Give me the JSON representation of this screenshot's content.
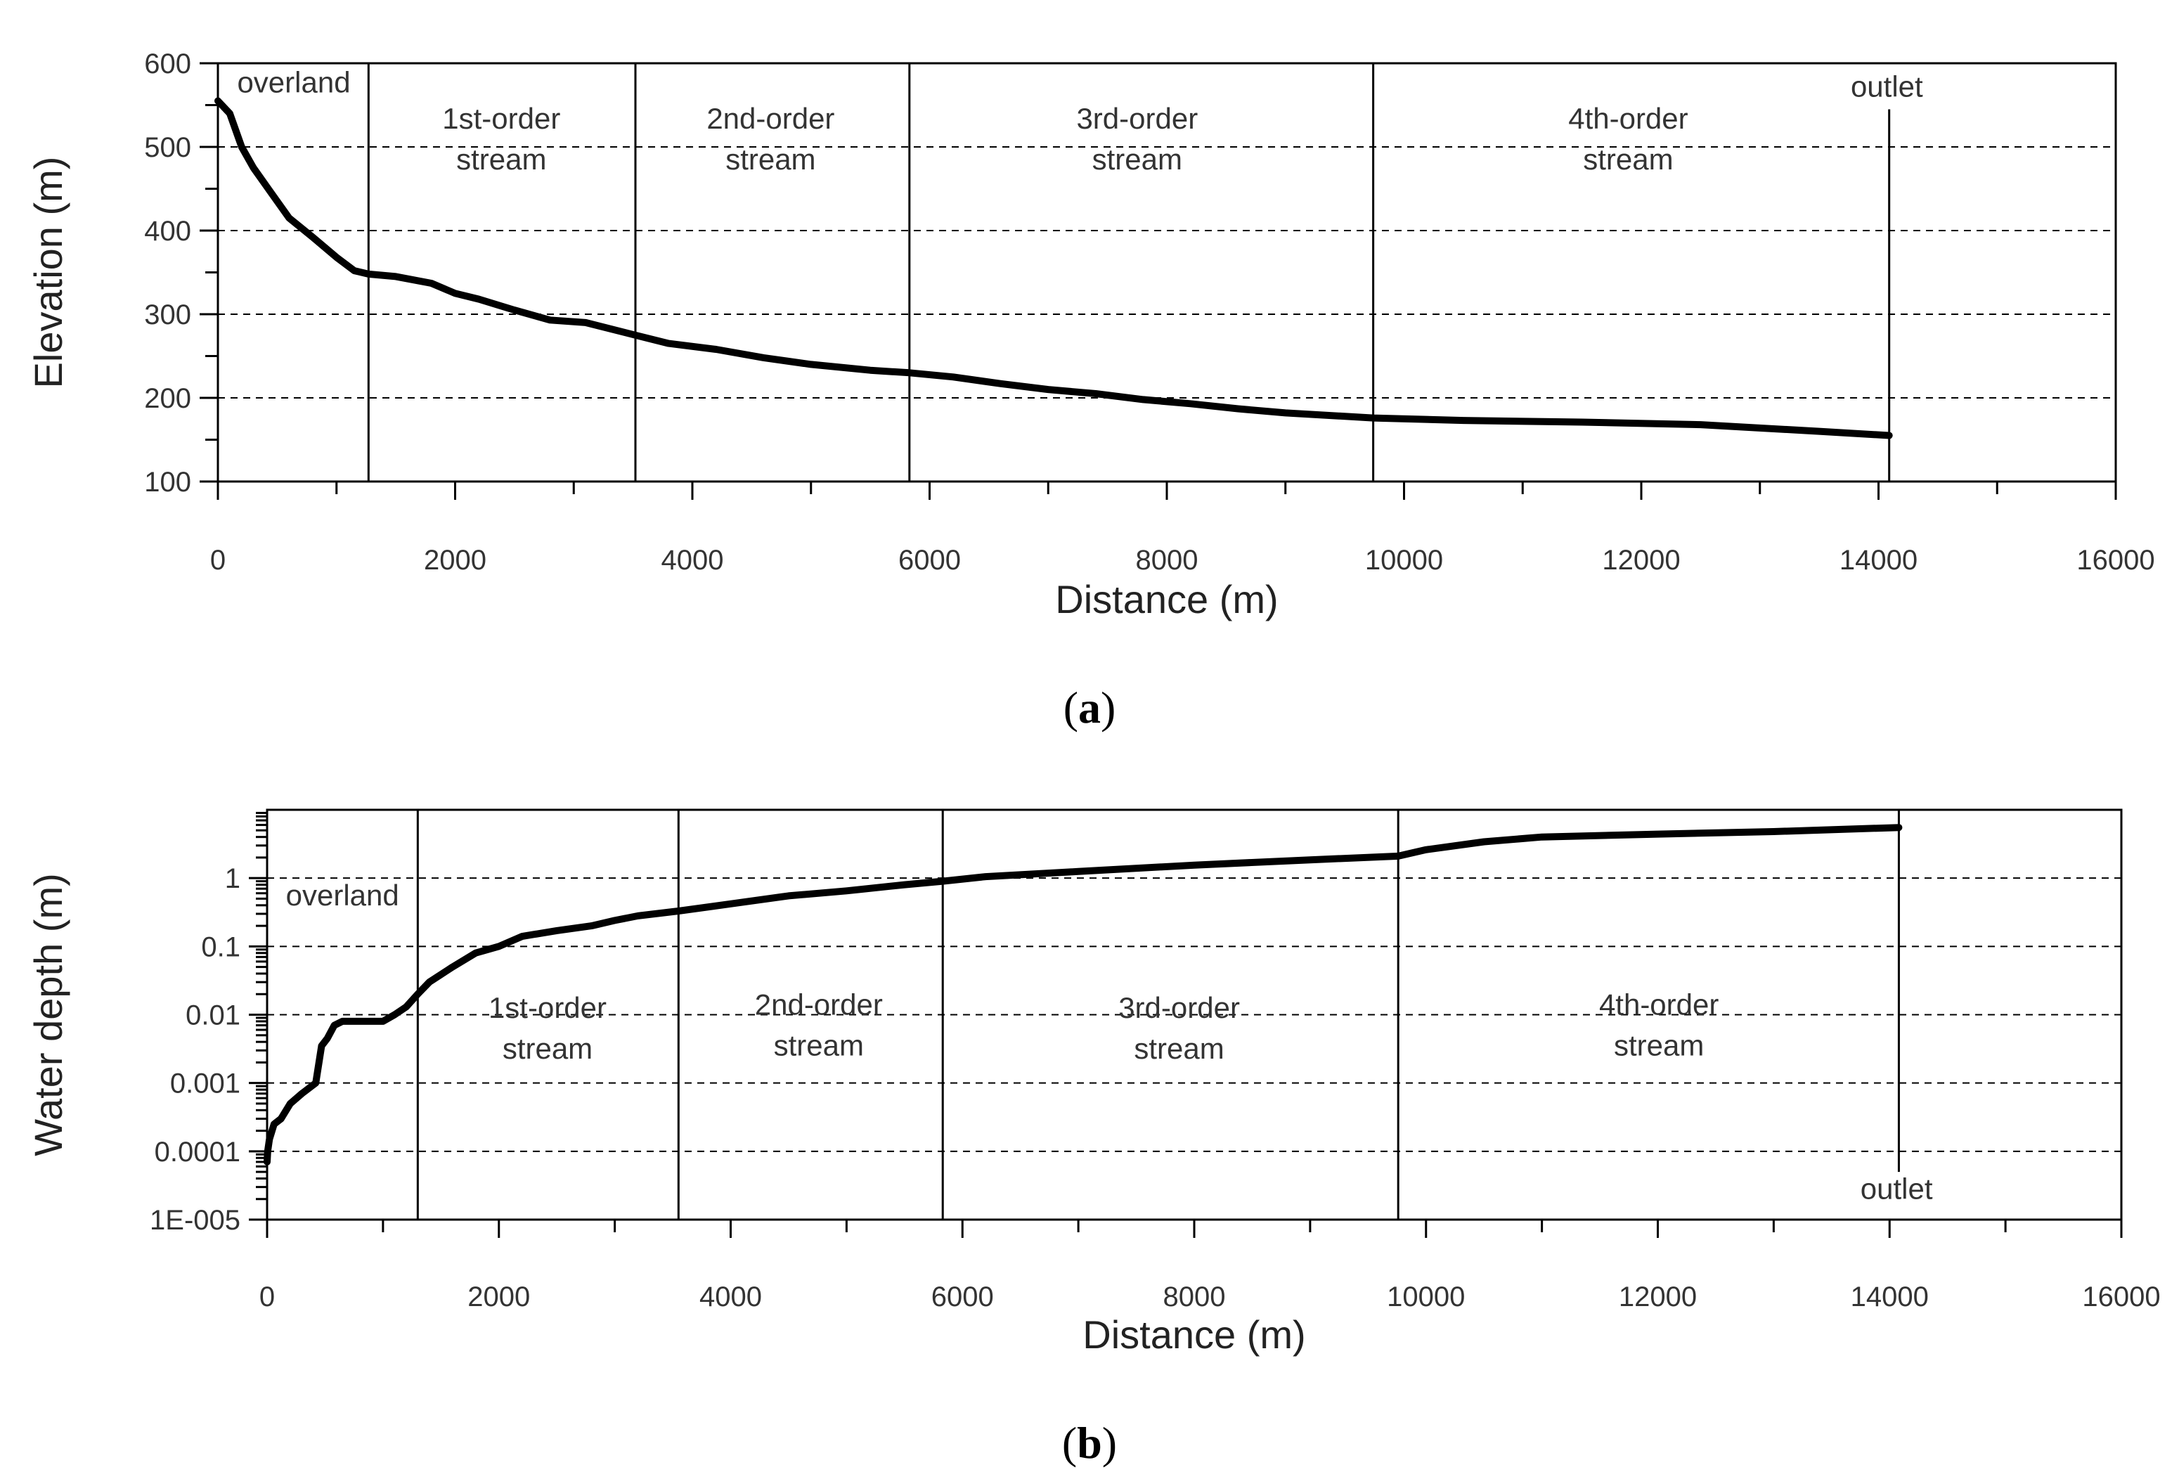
{
  "chart_data": [
    {
      "panel": "a",
      "caption": {
        "open": "(",
        "letter": "a",
        "close": ")"
      },
      "type": "line",
      "xlabel": "Distance (m)",
      "ylabel": "Elevation (m)",
      "xlim": [
        0,
        16000
      ],
      "ylim": [
        100,
        600
      ],
      "yscale": "linear",
      "xticks": [
        0,
        2000,
        4000,
        6000,
        8000,
        10000,
        12000,
        14000,
        16000
      ],
      "xtick_labels": [
        "0",
        "2000",
        "4000",
        "6000",
        "8000",
        "10000",
        "12000",
        "14000",
        "16000"
      ],
      "yticks": [
        100,
        200,
        300,
        400,
        500,
        600
      ],
      "ytick_labels": [
        "100",
        "200",
        "300",
        "400",
        "500",
        "600"
      ],
      "gridlines_y": [
        200,
        300,
        400,
        500
      ],
      "boundaries": [
        1270,
        3520,
        5830,
        9740,
        14090
      ],
      "regions": [
        {
          "lines": [
            "overland"
          ],
          "x": 640,
          "y_top": 565
        },
        {
          "lines": [
            "1st-order",
            "stream"
          ],
          "x": 2390,
          "y_top": 522
        },
        {
          "lines": [
            "2nd-order",
            "stream"
          ],
          "x": 4660,
          "y_top": 522
        },
        {
          "lines": [
            "3rd-order",
            "stream"
          ],
          "x": 7750,
          "y_top": 522
        },
        {
          "lines": [
            "4th-order",
            "stream"
          ],
          "x": 11890,
          "y_top": 522
        },
        {
          "lines": [
            "outlet"
          ],
          "x": 14070,
          "y_top": 560
        }
      ],
      "series": [
        {
          "name": "Elevation",
          "x": [
            0,
            100,
            200,
            300,
            450,
            600,
            800,
            1000,
            1150,
            1270,
            1500,
            1800,
            2000,
            2200,
            2500,
            2800,
            3100,
            3520,
            3800,
            4200,
            4600,
            5000,
            5500,
            5830,
            6200,
            6600,
            7000,
            7400,
            7800,
            8200,
            8600,
            9000,
            9740,
            10500,
            11500,
            12500,
            13500,
            14090
          ],
          "y": [
            555,
            540,
            500,
            475,
            445,
            415,
            392,
            368,
            352,
            348,
            345,
            337,
            325,
            318,
            305,
            293,
            290,
            275,
            265,
            258,
            248,
            240,
            233,
            230,
            225,
            217,
            210,
            205,
            198,
            193,
            187,
            182,
            176,
            173,
            171,
            168,
            160,
            155
          ]
        }
      ]
    },
    {
      "panel": "b",
      "caption": {
        "open": "(",
        "letter": "b",
        "close": ")"
      },
      "type": "line",
      "xlabel": "Distance (m)",
      "ylabel": "Water depth (m)",
      "xlim": [
        0,
        16000
      ],
      "ylim": [
        1e-05,
        10
      ],
      "yscale": "log",
      "xticks": [
        0,
        2000,
        4000,
        6000,
        8000,
        10000,
        12000,
        14000,
        16000
      ],
      "xtick_labels": [
        "0",
        "2000",
        "4000",
        "6000",
        "8000",
        "10000",
        "12000",
        "14000",
        "16000"
      ],
      "yticks": [
        1e-05,
        0.0001,
        0.001,
        0.01,
        0.1,
        1
      ],
      "ytick_labels": [
        "1E-005",
        "0.0001",
        "0.001",
        "0.01",
        "0.1",
        "1"
      ],
      "gridlines_y": [
        0.0001,
        0.001,
        0.01,
        0.1,
        1
      ],
      "boundaries": [
        1300,
        3550,
        5830,
        9760,
        14080
      ],
      "regions": [
        {
          "lines": [
            "overland"
          ],
          "x": 650,
          "y_top": 0.4
        },
        {
          "lines": [
            "1st-order",
            "stream"
          ],
          "x": 2420,
          "y_top": 0.009
        },
        {
          "lines": [
            "2nd-order",
            "stream"
          ],
          "x": 4760,
          "y_top": 0.01
        },
        {
          "lines": [
            "3rd-order",
            "stream"
          ],
          "x": 7870,
          "y_top": 0.009
        },
        {
          "lines": [
            "4th-order",
            "stream"
          ],
          "x": 12010,
          "y_top": 0.01
        },
        {
          "lines": [
            "outlet"
          ],
          "x": 14060,
          "y_top": 2e-05
        }
      ],
      "series": [
        {
          "name": "Water depth",
          "x": [
            0,
            5,
            20,
            60,
            120,
            200,
            300,
            420,
            470,
            520,
            580,
            650,
            800,
            1000,
            1100,
            1200,
            1300,
            1400,
            1600,
            1800,
            2000,
            2200,
            2500,
            2800,
            3000,
            3200,
            3550,
            4000,
            4500,
            5000,
            5500,
            5830,
            6200,
            7000,
            8000,
            9000,
            9760,
            10000,
            10500,
            11000,
            12000,
            13000,
            14080
          ],
          "y": [
            7e-05,
            0.0001,
            0.00015,
            0.00025,
            0.0003,
            0.0005,
            0.0007,
            0.001,
            0.0035,
            0.0045,
            0.007,
            0.008,
            0.008,
            0.008,
            0.01,
            0.013,
            0.02,
            0.03,
            0.05,
            0.08,
            0.1,
            0.14,
            0.17,
            0.2,
            0.24,
            0.28,
            0.33,
            0.42,
            0.55,
            0.65,
            0.8,
            0.9,
            1.05,
            1.25,
            1.55,
            1.85,
            2.1,
            2.6,
            3.4,
            4.0,
            4.4,
            4.8,
            5.5
          ]
        }
      ]
    }
  ]
}
